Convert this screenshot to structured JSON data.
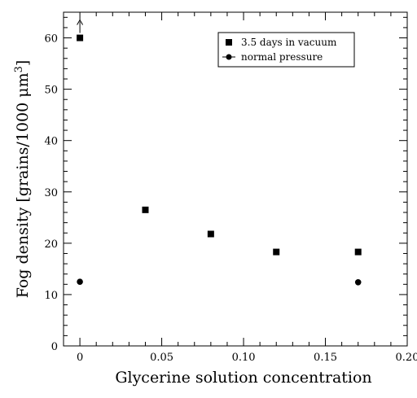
{
  "chart_data": {
    "type": "scatter",
    "xlabel": "Glycerine solution concentration",
    "ylabel_main": "Fog density [grains/1000 μm",
    "ylabel_sup": "3",
    "ylabel_close": "]",
    "xlim": [
      -0.01,
      0.2
    ],
    "ylim": [
      0,
      65
    ],
    "x_ticks": [
      0,
      0.05,
      0.1,
      0.15,
      0.2
    ],
    "x_tick_labels": [
      "0",
      "0.05",
      "0.10",
      "0.15",
      "0.20"
    ],
    "x_minor_step": 0.01,
    "y_ticks": [
      0,
      10,
      20,
      30,
      40,
      50,
      60
    ],
    "y_tick_labels": [
      "0",
      "10",
      "20",
      "30",
      "40",
      "50",
      "60"
    ],
    "y_minor_step": 2,
    "grid": false,
    "legend_position": "top-right",
    "series": [
      {
        "name": "3.5 days in vacuum",
        "marker": "square",
        "color": "#000000",
        "x": [
          0,
          0.04,
          0.08,
          0.12,
          0.17
        ],
        "y": [
          60,
          26.5,
          21.8,
          18.3,
          18.3
        ]
      },
      {
        "name": "normal pressure",
        "marker": "circle",
        "color": "#000000",
        "x": [
          0,
          0.17
        ],
        "y": [
          12.5,
          12.4
        ]
      }
    ],
    "annotations": [
      {
        "type": "arrow-up",
        "x": 0,
        "y": 60,
        "meaning": "lower limit"
      }
    ]
  }
}
